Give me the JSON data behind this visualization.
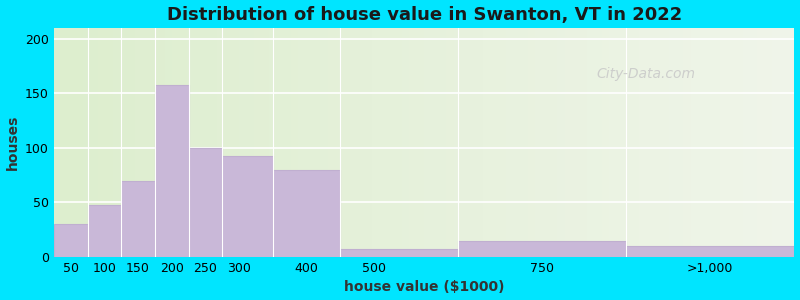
{
  "title": "Distribution of house value in Swanton, VT in 2022",
  "xlabel": "house value ($1000)",
  "ylabel": "houses",
  "bin_edges": [
    25,
    75,
    125,
    175,
    225,
    275,
    350,
    450,
    625,
    875,
    1125
  ],
  "bin_centers": [
    50,
    100,
    150,
    200,
    250,
    300,
    400,
    500,
    750,
    1000
  ],
  "tick_labels": [
    "50",
    "100",
    "150",
    "200",
    "250",
    "300",
    "400",
    "500",
    "750",
    ">1,000"
  ],
  "values": [
    30,
    48,
    70,
    158,
    100,
    93,
    80,
    7,
    15,
    10
  ],
  "bar_color": "#c9b8d8",
  "bar_edge_color": "#c0afd0",
  "ylim": [
    0,
    210
  ],
  "yticks": [
    0,
    50,
    100,
    150,
    200
  ],
  "xlim": [
    25,
    1125
  ],
  "outer_bg": "#00e5ff",
  "grid_color": "#ffffff",
  "title_fontsize": 13,
  "axis_label_fontsize": 10,
  "tick_fontsize": 9,
  "watermark_text": "City-Data.com",
  "watermark_color": "#c8c8c8",
  "bg_gradient_left": "#ddeece",
  "bg_gradient_right": "#f0f5ea"
}
